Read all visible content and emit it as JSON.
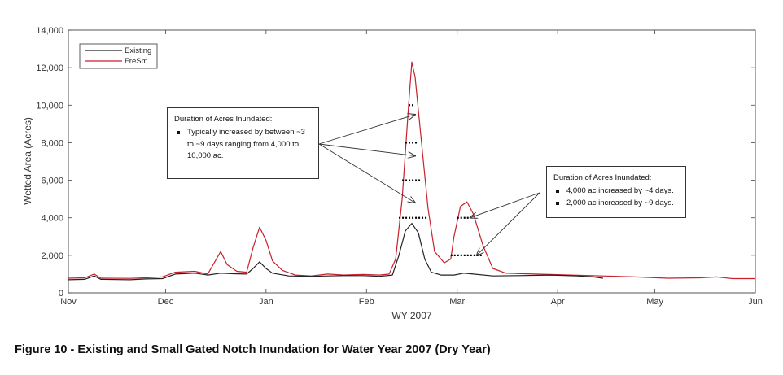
{
  "caption": "Figure 10 - Existing and Small Gated Notch Inundation for Water Year 2007 (Dry Year)",
  "chart_data": {
    "type": "line",
    "xlabel": "WY 2007",
    "ylabel": "Wetted Area (Acres)",
    "xlim": [
      "2006-11-01",
      "2007-06-01"
    ],
    "ylim": [
      0,
      14000
    ],
    "x_ticks": [
      "Nov",
      "Dec",
      "Jan",
      "Feb",
      "Mar",
      "Apr",
      "May",
      "Jun"
    ],
    "y_ticks": [
      "0",
      "2,000",
      "4,000",
      "6,000",
      "8,000",
      "10,000",
      "12,000",
      "14,000"
    ],
    "y_tick_values": [
      0,
      2000,
      4000,
      6000,
      8000,
      10000,
      12000,
      14000
    ],
    "grid": false,
    "legend_position": "top-left",
    "series": [
      {
        "name": "Existing",
        "color": "#222222",
        "points": [
          [
            "2006-11-01",
            700
          ],
          [
            "2006-11-06",
            720
          ],
          [
            "2006-11-09",
            900
          ],
          [
            "2006-11-11",
            720
          ],
          [
            "2006-11-20",
            700
          ],
          [
            "2006-11-25",
            740
          ],
          [
            "2006-11-30",
            760
          ],
          [
            "2006-12-04",
            1000
          ],
          [
            "2006-12-10",
            1050
          ],
          [
            "2006-12-14",
            950
          ],
          [
            "2006-12-18",
            1050
          ],
          [
            "2006-12-22",
            1020
          ],
          [
            "2006-12-26",
            1000
          ],
          [
            "2006-12-28",
            1300
          ],
          [
            "2006-12-30",
            1650
          ],
          [
            "2007-01-01",
            1300
          ],
          [
            "2007-01-03",
            1050
          ],
          [
            "2007-01-08",
            900
          ],
          [
            "2007-01-15",
            880
          ],
          [
            "2007-01-20",
            900
          ],
          [
            "2007-01-25",
            920
          ],
          [
            "2007-01-31",
            920
          ],
          [
            "2007-02-05",
            880
          ],
          [
            "2007-02-09",
            950
          ],
          [
            "2007-02-11",
            2000
          ],
          [
            "2007-02-13",
            3300
          ],
          [
            "2007-02-15",
            3700
          ],
          [
            "2007-02-17",
            3200
          ],
          [
            "2007-02-19",
            1800
          ],
          [
            "2007-02-21",
            1100
          ],
          [
            "2007-02-24",
            950
          ],
          [
            "2007-02-28",
            950
          ],
          [
            "2007-03-03",
            1050
          ],
          [
            "2007-03-06",
            1000
          ],
          [
            "2007-03-12",
            900
          ],
          [
            "2007-03-20",
            920
          ],
          [
            "2007-03-30",
            950
          ],
          [
            "2007-04-07",
            900
          ],
          [
            "2007-04-12",
            850
          ],
          [
            "2007-04-15",
            780
          ]
        ]
      },
      {
        "name": "FreSm",
        "color": "#c8202c",
        "points": [
          [
            "2006-11-01",
            780
          ],
          [
            "2006-11-06",
            800
          ],
          [
            "2006-11-09",
            1000
          ],
          [
            "2006-11-11",
            780
          ],
          [
            "2006-11-20",
            770
          ],
          [
            "2006-11-25",
            800
          ],
          [
            "2006-11-30",
            850
          ],
          [
            "2006-12-04",
            1100
          ],
          [
            "2006-12-10",
            1150
          ],
          [
            "2006-12-14",
            1000
          ],
          [
            "2006-12-16",
            1600
          ],
          [
            "2006-12-18",
            2200
          ],
          [
            "2006-12-20",
            1500
          ],
          [
            "2006-12-23",
            1150
          ],
          [
            "2006-12-26",
            1100
          ],
          [
            "2006-12-28",
            2400
          ],
          [
            "2006-12-30",
            3500
          ],
          [
            "2007-01-01",
            2800
          ],
          [
            "2007-01-03",
            1700
          ],
          [
            "2007-01-06",
            1200
          ],
          [
            "2007-01-10",
            950
          ],
          [
            "2007-01-15",
            900
          ],
          [
            "2007-01-20",
            1000
          ],
          [
            "2007-01-25",
            950
          ],
          [
            "2007-01-31",
            980
          ],
          [
            "2007-02-05",
            950
          ],
          [
            "2007-02-08",
            1000
          ],
          [
            "2007-02-10",
            1800
          ],
          [
            "2007-02-12",
            5000
          ],
          [
            "2007-02-14",
            10000
          ],
          [
            "2007-02-15",
            12300
          ],
          [
            "2007-02-16",
            11500
          ],
          [
            "2007-02-18",
            8000
          ],
          [
            "2007-02-20",
            4500
          ],
          [
            "2007-02-22",
            2200
          ],
          [
            "2007-02-25",
            1600
          ],
          [
            "2007-02-27",
            1800
          ],
          [
            "2007-02-28",
            3000
          ],
          [
            "2007-03-02",
            4600
          ],
          [
            "2007-03-04",
            4850
          ],
          [
            "2007-03-06",
            4200
          ],
          [
            "2007-03-09",
            2500
          ],
          [
            "2007-03-12",
            1300
          ],
          [
            "2007-03-16",
            1050
          ],
          [
            "2007-03-25",
            1000
          ],
          [
            "2007-04-05",
            950
          ],
          [
            "2007-04-15",
            900
          ],
          [
            "2007-04-25",
            850
          ],
          [
            "2007-05-05",
            780
          ],
          [
            "2007-05-15",
            800
          ],
          [
            "2007-05-20",
            850
          ],
          [
            "2007-05-25",
            760
          ],
          [
            "2007-06-01",
            760
          ]
        ]
      }
    ],
    "annotations": [
      {
        "title": "Duration of Acres Inundated:",
        "bullets": [
          "Typically increased by between ~3 to ~9 days ranging from 4,000 to 10,000 ac."
        ],
        "targets": [
          {
            "x": "2007-02-16",
            "y": 9500
          },
          {
            "x": "2007-02-16",
            "y": 7300
          },
          {
            "x": "2007-02-16",
            "y": 4800
          }
        ]
      },
      {
        "title": "Duration of Acres Inundated:",
        "bullets": [
          "4,000 ac increased by ~4 days.",
          "2,000 ac increased by ~9 days."
        ],
        "targets": [
          {
            "x": "2007-03-05",
            "y": 4000
          },
          {
            "x": "2007-03-07",
            "y": 2000
          }
        ]
      }
    ],
    "duration_markers": [
      {
        "y": 10000,
        "x_start": "2007-02-14",
        "x_end": "2007-02-16"
      },
      {
        "y": 8000,
        "x_start": "2007-02-13",
        "x_end": "2007-02-17"
      },
      {
        "y": 6000,
        "x_start": "2007-02-12",
        "x_end": "2007-02-18"
      },
      {
        "y": 4000,
        "x_start": "2007-02-11",
        "x_end": "2007-02-20"
      },
      {
        "y": 4000,
        "x_start": "2007-03-01",
        "x_end": "2007-03-05"
      },
      {
        "y": 2000,
        "x_start": "2007-02-27",
        "x_end": "2007-03-09"
      }
    ]
  }
}
